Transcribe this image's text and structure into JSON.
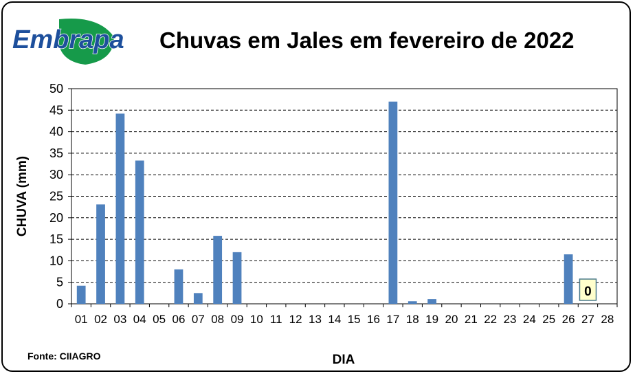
{
  "logo": {
    "text": "Embrapa",
    "colors": {
      "blue": "#1d4f9c",
      "green": "#169a4a"
    }
  },
  "source": "Fonte: CIIAGRO",
  "chart_data": {
    "type": "bar",
    "title": "Chuvas em Jales em fevereiro de 2022",
    "xlabel": "DIA",
    "ylabel": "CHUVA  (mm)",
    "ylim": [
      0,
      50
    ],
    "yticks": [
      0,
      5,
      10,
      15,
      20,
      25,
      30,
      35,
      40,
      45,
      50
    ],
    "grid": true,
    "bar_color": "#4f81bd",
    "categories": [
      "01",
      "02",
      "03",
      "04",
      "05",
      "06",
      "07",
      "08",
      "09",
      "10",
      "11",
      "12",
      "13",
      "14",
      "15",
      "16",
      "17",
      "18",
      "19",
      "20",
      "21",
      "22",
      "23",
      "24",
      "25",
      "26",
      "27",
      "28"
    ],
    "values": [
      4.2,
      23.1,
      44.2,
      33.3,
      0,
      8,
      2.5,
      15.8,
      12,
      0,
      0,
      0,
      0,
      0,
      0,
      0,
      47,
      0.6,
      1.1,
      0,
      0,
      0,
      0,
      0,
      0,
      11.5,
      0,
      0
    ],
    "annotations": [
      {
        "category": "27",
        "text": "0"
      }
    ]
  }
}
